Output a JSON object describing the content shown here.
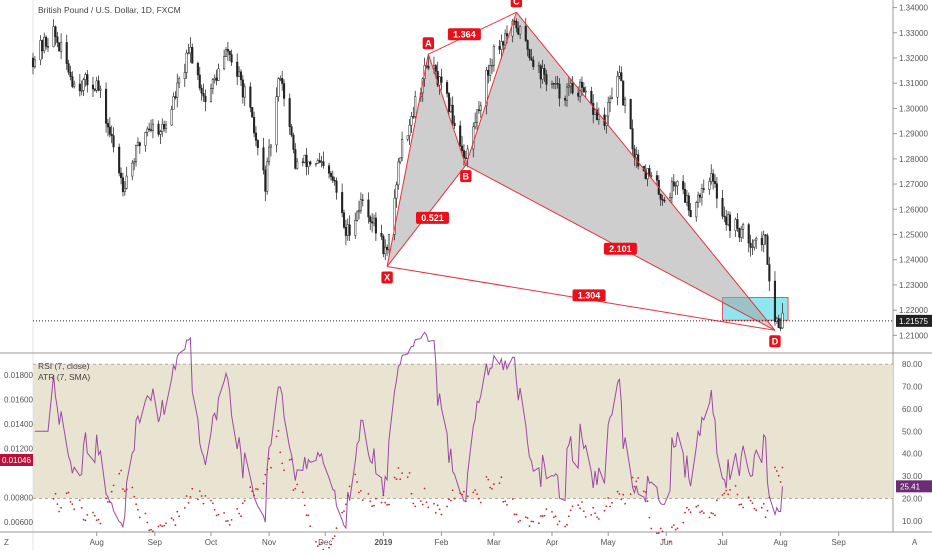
{
  "header": {
    "main_title": "British Pound / U.S. Dollar, 1D, FXCM",
    "rsi_title": "RSI (7, close)",
    "atr_title": "ATR (7, SMA)"
  },
  "colors": {
    "up": "#ffffff",
    "down": "#222222",
    "wick": "#333333",
    "pattern_line": "#e8313b",
    "pattern_fill": "#a6a6a6",
    "badge": "#e8101a",
    "zone_fill": "#8fe6ee",
    "rsi_line": "#9c4aa3",
    "rsi_band": "#e9e3d2",
    "atr_dots": "#c62828",
    "price_tag": "#222222",
    "atr_tag": "#b8123a",
    "rsi_tag": "#6b2c74"
  },
  "axis": {
    "time_labels": [
      "Z",
      "Aug",
      "Sep",
      "Oct",
      "Nov",
      "Dec",
      "2019",
      "Feb",
      "Mar",
      "Apr",
      "May",
      "Jun",
      "Jul",
      "Aug",
      "Sep",
      "A"
    ]
  },
  "price_axis_labels": [
    "1.34000",
    "1.33000",
    "1.32000",
    "1.31000",
    "1.30000",
    "1.29000",
    "1.28000",
    "1.27000",
    "1.26000",
    "1.25000",
    "1.24000",
    "1.23000",
    "1.22000",
    "1.21000"
  ],
  "rsi_axis_labels": [
    "80.00",
    "70.00",
    "60.00",
    "50.00",
    "40.00",
    "30.00",
    "20.00",
    "10.00"
  ],
  "atr_axis_labels": [
    "0.01800",
    "0.01600",
    "0.01400",
    "0.01200",
    "0.00800",
    "0.00600"
  ],
  "current": {
    "price": "1.21575",
    "atr": "0.01046",
    "rsi": "25.41"
  },
  "chart_data": {
    "type": "candlestick",
    "title": "British Pound / U.S. Dollar, 1D, FXCM",
    "y_range": [
      1.203,
      1.343
    ],
    "x_range": [
      "2018-06-28",
      "2019-09-30"
    ],
    "pattern": {
      "points": [
        {
          "label": "X",
          "date": "2019-01-03",
          "price": 1.2373
        },
        {
          "label": "A",
          "date": "2019-01-25",
          "price": 1.3215
        },
        {
          "label": "B",
          "date": "2019-02-14",
          "price": 1.2775
        },
        {
          "label": "C",
          "date": "2019-03-13",
          "price": 1.3381
        },
        {
          "label": "D",
          "date": "2019-07-29",
          "price": 1.212
        }
      ],
      "ratios": [
        "0.521",
        "1.364",
        "2.101",
        "1.304"
      ]
    },
    "zone": {
      "date_start": "2019-07-01",
      "date_end": "2019-08-05",
      "price_top": 1.225,
      "price_bottom": 1.216
    },
    "series": {
      "keypoints": [
        [
          "2018-06-28",
          1.32
        ],
        [
          "2018-07-09",
          1.33
        ],
        [
          "2018-07-20",
          1.31
        ],
        [
          "2018-08-01",
          1.31
        ],
        [
          "2018-08-15",
          1.27
        ],
        [
          "2018-08-28",
          1.293
        ],
        [
          "2018-09-06",
          1.292
        ],
        [
          "2018-09-20",
          1.323
        ],
        [
          "2018-09-28",
          1.303
        ],
        [
          "2018-10-10",
          1.323
        ],
        [
          "2018-10-20",
          1.304
        ],
        [
          "2018-10-30",
          1.27
        ],
        [
          "2018-11-07",
          1.315
        ],
        [
          "2018-11-15",
          1.278
        ],
        [
          "2018-11-26",
          1.279
        ],
        [
          "2018-12-06",
          1.27
        ],
        [
          "2018-12-12",
          1.25
        ],
        [
          "2018-12-21",
          1.264
        ],
        [
          "2019-01-03",
          1.242
        ],
        [
          "2019-01-10",
          1.283
        ],
        [
          "2019-01-25",
          1.319
        ],
        [
          "2019-02-05",
          1.301
        ],
        [
          "2019-02-14",
          1.28
        ],
        [
          "2019-02-22",
          1.304
        ],
        [
          "2019-03-01",
          1.323
        ],
        [
          "2019-03-13",
          1.333
        ],
        [
          "2019-03-25",
          1.315
        ],
        [
          "2019-04-05",
          1.306
        ],
        [
          "2019-04-15",
          1.308
        ],
        [
          "2019-04-29",
          1.293
        ],
        [
          "2019-05-06",
          1.315
        ],
        [
          "2019-05-15",
          1.282
        ],
        [
          "2019-05-31",
          1.264
        ],
        [
          "2019-06-07",
          1.272
        ],
        [
          "2019-06-14",
          1.26
        ],
        [
          "2019-06-24",
          1.274
        ],
        [
          "2019-07-03",
          1.256
        ],
        [
          "2019-07-16",
          1.248
        ],
        [
          "2019-07-24",
          1.247
        ],
        [
          "2019-07-29",
          1.216
        ],
        [
          "2019-08-02",
          1.2158
        ]
      ]
    },
    "rsi": {
      "name": "RSI (7, close)",
      "band": [
        20,
        80
      ],
      "y_range": [
        5,
        85
      ],
      "last": 25.41
    },
    "atr": {
      "name": "ATR (7, SMA)",
      "y_range": [
        0.0052,
        0.0198
      ],
      "last": 0.01046
    }
  }
}
